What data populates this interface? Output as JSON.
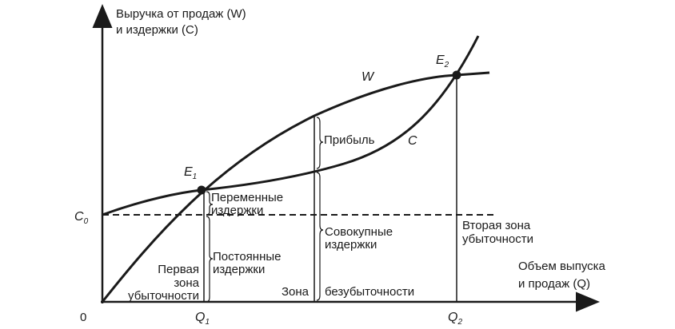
{
  "axes": {
    "y_label": [
      "Выручка от продаж (W)",
      "и издержки (C)"
    ],
    "x_label": [
      "Объем выпуска",
      "и продаж (Q)"
    ],
    "origin": "0"
  },
  "points": {
    "C0": {
      "letter": "C",
      "sub": "0"
    },
    "Q1": {
      "letter": "Q",
      "sub": "1"
    },
    "Q2": {
      "letter": "Q",
      "sub": "2"
    },
    "E1": {
      "letter": "E",
      "sub": "1"
    },
    "E2": {
      "letter": "E",
      "sub": "2"
    }
  },
  "curves": {
    "revenue": "W",
    "costs": "C"
  },
  "labels": {
    "profit": "Прибыль",
    "variable_costs": [
      "Переменные",
      "издержки"
    ],
    "fixed_costs": [
      "Постоянные",
      "издержки"
    ],
    "total_costs": [
      "Совокупные",
      "издержки"
    ],
    "first_loss_zone": [
      "Первая",
      "зона",
      "убыточности"
    ],
    "breakeven_zone": [
      "Зона",
      "безубыточности"
    ],
    "second_loss_zone": [
      "Вторая зона",
      "убыточности"
    ]
  }
}
